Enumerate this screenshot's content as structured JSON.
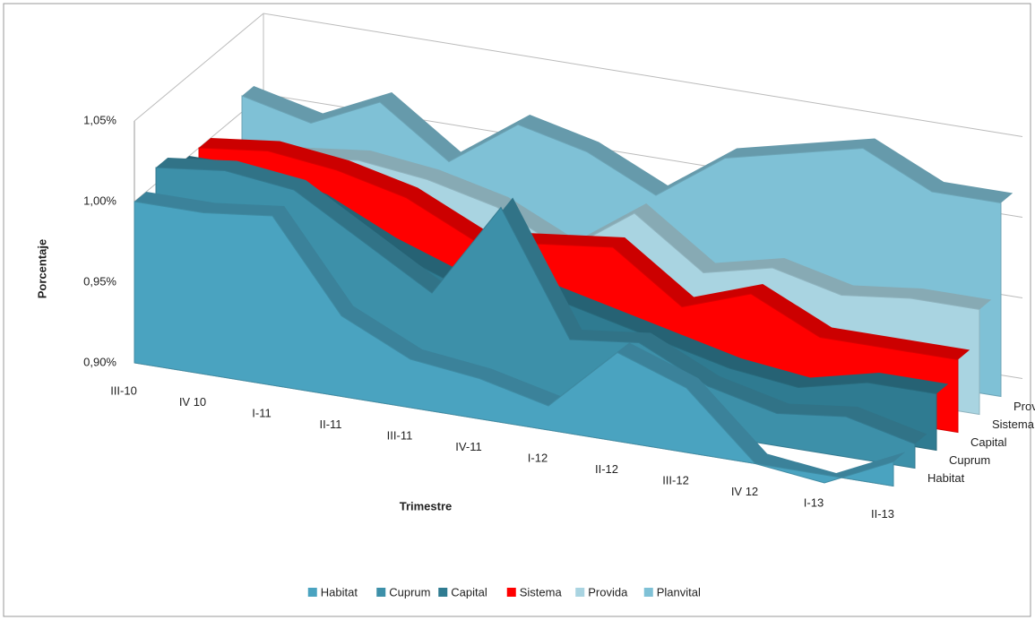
{
  "chart_data": {
    "type": "area3d",
    "x_label": "Trimestre",
    "y_label": "Porcentaje",
    "categories": [
      "III-10",
      "IV 10",
      "I-11",
      "II-11",
      "III-11",
      "IV-11",
      "I-12",
      "II-12",
      "III-12",
      "IV 12",
      "I-13",
      "II-13"
    ],
    "ylim": [
      0.9,
      1.05
    ],
    "yticks": [
      {
        "value": 0.9,
        "label": "0,90%"
      },
      {
        "value": 0.95,
        "label": "0,95%"
      },
      {
        "value": 1.0,
        "label": "1,00%"
      },
      {
        "value": 1.05,
        "label": "1,05%"
      }
    ],
    "grid": true,
    "legend": "bottom",
    "series": [
      {
        "name": "Habitat",
        "color": "#4aa3c0",
        "values": [
          1.0,
          1.0,
          1.005,
          0.95,
          0.93,
          0.925,
          0.915,
          0.955,
          0.94,
          0.9,
          0.895,
          0.915
        ]
      },
      {
        "name": "Cuprum",
        "color": "#3d90a9",
        "values": [
          1.01,
          1.015,
          1.01,
          0.985,
          0.96,
          1.02,
          0.945,
          0.95,
          0.93,
          0.92,
          0.925,
          0.915
        ]
      },
      {
        "name": "Capital",
        "color": "#2f7b91",
        "values": [
          1.0,
          1.0,
          0.99,
          0.97,
          0.955,
          0.96,
          0.95,
          0.94,
          0.93,
          0.925,
          0.935,
          0.935
        ]
      },
      {
        "name": "Sistema",
        "color": "#ff0000",
        "values": [
          1.0,
          1.005,
          1.0,
          0.99,
          0.97,
          0.975,
          0.98,
          0.95,
          0.965,
          0.945,
          0.945,
          0.945
        ]
      },
      {
        "name": "Provida",
        "color": "#a9d4e1",
        "values": [
          0.98,
          0.99,
          0.995,
          0.99,
          0.98,
          0.96,
          0.99,
          0.96,
          0.97,
          0.96,
          0.965,
          0.965
        ]
      },
      {
        "name": "Planvital",
        "color": "#7fc1d6",
        "values": [
          1.01,
          1.0,
          1.02,
          0.99,
          1.02,
          1.01,
          0.99,
          1.02,
          1.03,
          1.04,
          1.02,
          1.02
        ]
      }
    ]
  }
}
